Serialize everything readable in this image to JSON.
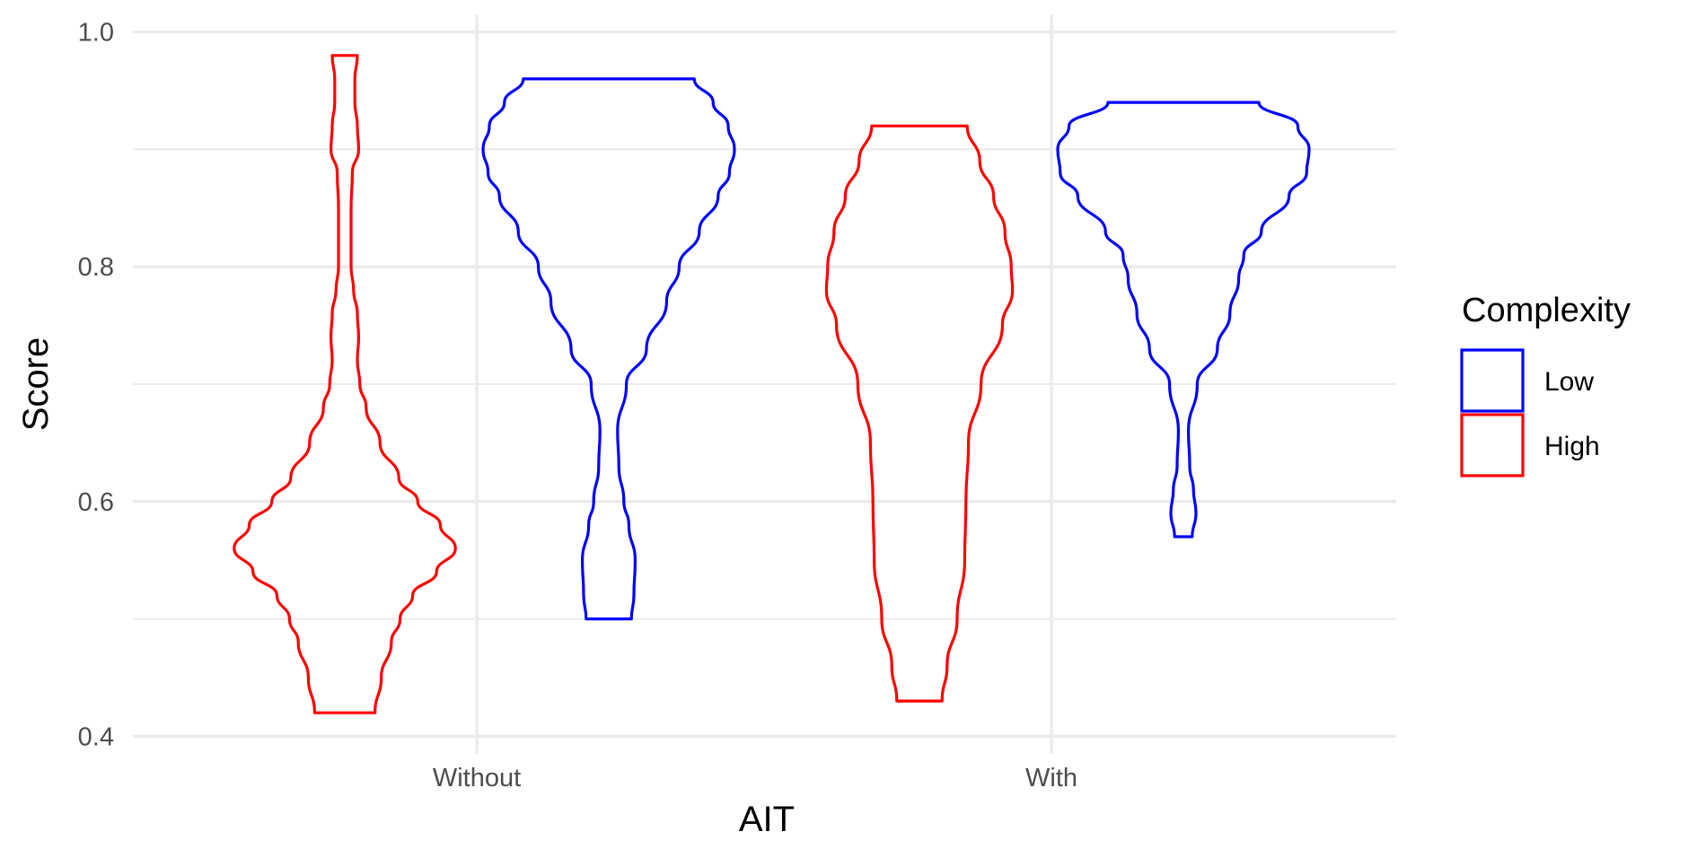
{
  "chart_data": {
    "type": "violin",
    "title": "",
    "xlabel": "AIT",
    "ylabel": "Score",
    "categories": [
      "Without",
      "With"
    ],
    "ylim": [
      0.385,
      1.015
    ],
    "yticks": [
      0.4,
      0.6,
      0.8,
      1.0
    ],
    "ytick_labels": [
      "0.4",
      "0.6",
      "0.8",
      "1.0"
    ],
    "minor_yticks": [
      0.5,
      0.7,
      0.9
    ],
    "grid": true,
    "legend": {
      "title": "Complexity",
      "position": "right",
      "entries": [
        {
          "label": "Low",
          "color": "#0000ff"
        },
        {
          "label": "High",
          "color": "#ff0000"
        }
      ]
    },
    "series": [
      {
        "name": "High",
        "color": "#ff0000",
        "violins": [
          {
            "category": "Without",
            "min": 0.42,
            "max": 0.98,
            "density": [
              [
                0.42,
                0.24
              ],
              [
                0.45,
                0.29
              ],
              [
                0.48,
                0.37
              ],
              [
                0.5,
                0.44
              ],
              [
                0.52,
                0.54
              ],
              [
                0.54,
                0.73
              ],
              [
                0.56,
                0.88
              ],
              [
                0.58,
                0.76
              ],
              [
                0.6,
                0.58
              ],
              [
                0.62,
                0.43
              ],
              [
                0.65,
                0.28
              ],
              [
                0.68,
                0.17
              ],
              [
                0.7,
                0.12
              ],
              [
                0.72,
                0.1
              ],
              [
                0.74,
                0.11
              ],
              [
                0.76,
                0.1
              ],
              [
                0.78,
                0.07
              ],
              [
                0.8,
                0.05
              ],
              [
                0.85,
                0.05
              ],
              [
                0.88,
                0.06
              ],
              [
                0.9,
                0.11
              ],
              [
                0.92,
                0.1
              ],
              [
                0.94,
                0.08
              ],
              [
                0.96,
                0.08
              ],
              [
                0.98,
                0.1
              ]
            ]
          },
          {
            "category": "With",
            "min": 0.43,
            "max": 0.92,
            "density": [
              [
                0.43,
                0.18
              ],
              [
                0.46,
                0.22
              ],
              [
                0.5,
                0.3
              ],
              [
                0.55,
                0.36
              ],
              [
                0.6,
                0.37
              ],
              [
                0.65,
                0.39
              ],
              [
                0.7,
                0.49
              ],
              [
                0.75,
                0.66
              ],
              [
                0.78,
                0.74
              ],
              [
                0.8,
                0.73
              ],
              [
                0.83,
                0.68
              ],
              [
                0.86,
                0.59
              ],
              [
                0.89,
                0.48
              ],
              [
                0.92,
                0.38
              ]
            ]
          }
        ]
      },
      {
        "name": "Low",
        "color": "#0000ff",
        "violins": [
          {
            "category": "Without",
            "min": 0.5,
            "max": 0.96,
            "density": [
              [
                0.5,
                0.18
              ],
              [
                0.52,
                0.2
              ],
              [
                0.55,
                0.21
              ],
              [
                0.58,
                0.16
              ],
              [
                0.6,
                0.12
              ],
              [
                0.63,
                0.08
              ],
              [
                0.66,
                0.07
              ],
              [
                0.7,
                0.14
              ],
              [
                0.73,
                0.3
              ],
              [
                0.77,
                0.46
              ],
              [
                0.8,
                0.56
              ],
              [
                0.83,
                0.72
              ],
              [
                0.86,
                0.87
              ],
              [
                0.88,
                0.96
              ],
              [
                0.9,
                1.0
              ],
              [
                0.92,
                0.95
              ],
              [
                0.94,
                0.83
              ],
              [
                0.96,
                0.68
              ]
            ]
          },
          {
            "category": "With",
            "min": 0.57,
            "max": 0.94,
            "density": [
              [
                0.57,
                0.07
              ],
              [
                0.59,
                0.1
              ],
              [
                0.61,
                0.08
              ],
              [
                0.63,
                0.05
              ],
              [
                0.66,
                0.04
              ],
              [
                0.7,
                0.11
              ],
              [
                0.73,
                0.27
              ],
              [
                0.76,
                0.37
              ],
              [
                0.79,
                0.44
              ],
              [
                0.81,
                0.48
              ],
              [
                0.83,
                0.62
              ],
              [
                0.86,
                0.84
              ],
              [
                0.88,
                0.98
              ],
              [
                0.9,
                1.0
              ],
              [
                0.92,
                0.91
              ],
              [
                0.94,
                0.6
              ]
            ]
          }
        ]
      }
    ]
  }
}
